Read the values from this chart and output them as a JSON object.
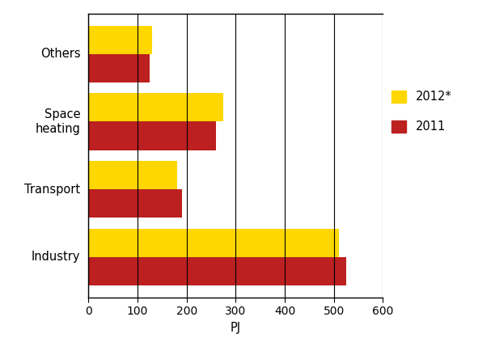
{
  "categories": [
    "Industry",
    "Transport",
    "Space\nheating",
    "Others"
  ],
  "values_2012": [
    510,
    180,
    275,
    130
  ],
  "values_2011": [
    525,
    190,
    260,
    125
  ],
  "color_2012": "#FFD700",
  "color_2011": "#BC2020",
  "xlabel": "PJ",
  "xlim": [
    0,
    600
  ],
  "xticks": [
    0,
    100,
    200,
    300,
    400,
    500,
    600
  ],
  "legend_2012": "2012*",
  "legend_2011": "2011",
  "bar_height": 0.42,
  "grid_color": "#000000",
  "background_color": "#ffffff",
  "figwidth": 6.07,
  "figheight": 4.18,
  "dpi": 100
}
